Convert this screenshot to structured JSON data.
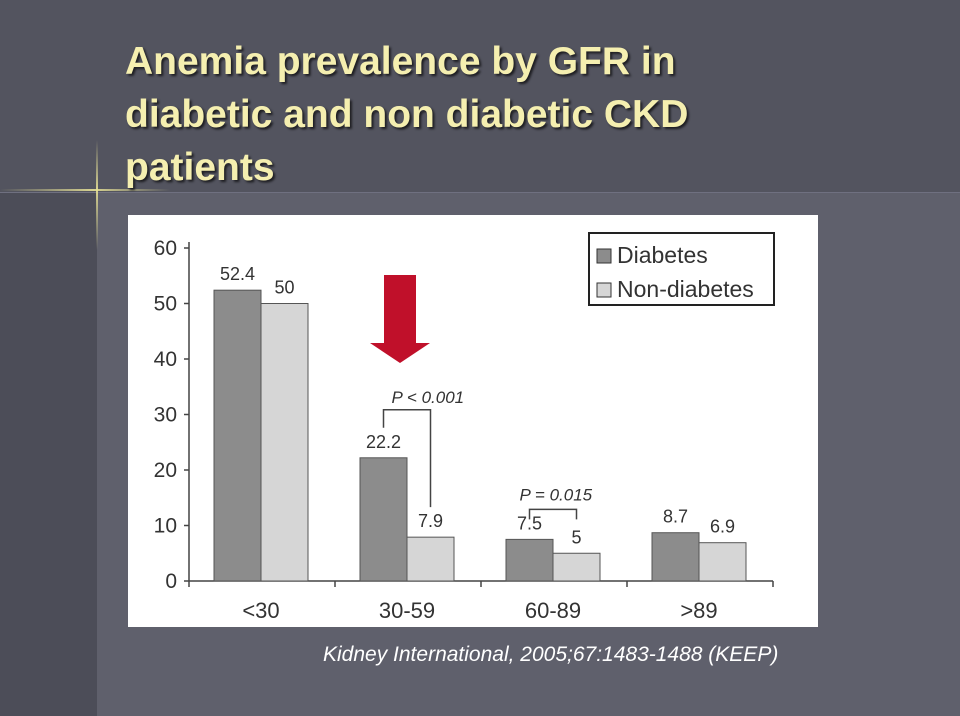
{
  "slide": {
    "title": "Anemia prevalence by GFR in diabetic and non diabetic CKD patients",
    "citation": "Kidney International, 2005;67:1483-1488 (KEEP)",
    "colors": {
      "background": "#5f606c",
      "title": "#f5efb0",
      "citation": "#ffffff",
      "arrow": "#c0102a"
    }
  },
  "chart_data": {
    "type": "bar",
    "title": "",
    "xlabel": "",
    "ylabel": "",
    "categories": [
      "<30",
      "30-59",
      "60-89",
      ">89"
    ],
    "series": [
      {
        "name": "Diabetes",
        "values": [
          52.4,
          22.2,
          7.5,
          8.7
        ],
        "labels": [
          "52.4",
          "22.2",
          "7.5",
          "8.7"
        ],
        "color": "#8c8c8c"
      },
      {
        "name": "Non-diabetes",
        "values": [
          50,
          7.9,
          5,
          6.9
        ],
        "labels": [
          "50",
          "7.9",
          "5",
          "6.9"
        ],
        "color": "#d6d6d6"
      }
    ],
    "ylim": [
      0,
      60
    ],
    "yticks": [
      0,
      10,
      20,
      30,
      40,
      50,
      60
    ],
    "legend": {
      "position": "top-right",
      "entries": [
        "Diabetes",
        "Non-diabetes"
      ]
    },
    "annotations": [
      {
        "text": "P < 0.001",
        "category_index": 1
      },
      {
        "text": "P = 0.015",
        "category_index": 2
      }
    ],
    "highlight_arrow": {
      "category_index": 1,
      "direction": "down"
    }
  }
}
